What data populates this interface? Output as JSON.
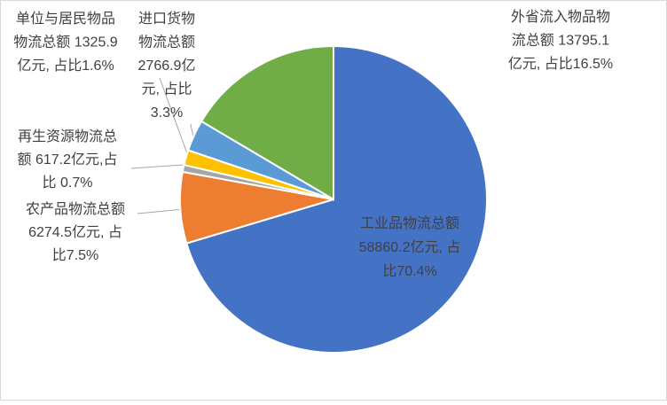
{
  "chart_data": {
    "type": "pie",
    "values": [
      58860.2,
      6274.5,
      617.2,
      1325.9,
      2766.9,
      13795.1
    ],
    "value_labels": [
      [
        "工业品物流总额",
        "58860.2亿元, 占",
        "比70.4%"
      ],
      [
        "农产品物流总额",
        "6274.5亿元, 占",
        "比7.5%"
      ],
      [
        "再生资源物流总",
        "额 617.2亿元,占",
        "比 0.7%"
      ],
      [
        "单位与居民物品",
        "物流总额 1325.9",
        "亿元, 占比1.6%"
      ],
      [
        "进口货物",
        "物流总额",
        "2766.9亿",
        "元, 占比",
        "3.3%"
      ],
      [
        "外省流入物品物",
        "流总额 13795.1",
        "亿元, 占比16.5%"
      ]
    ],
    "colors": [
      "#4472c4",
      "#ed7d31",
      "#a5a5a5",
      "#ffc000",
      "#5b9bd5",
      "#70ad47"
    ]
  }
}
